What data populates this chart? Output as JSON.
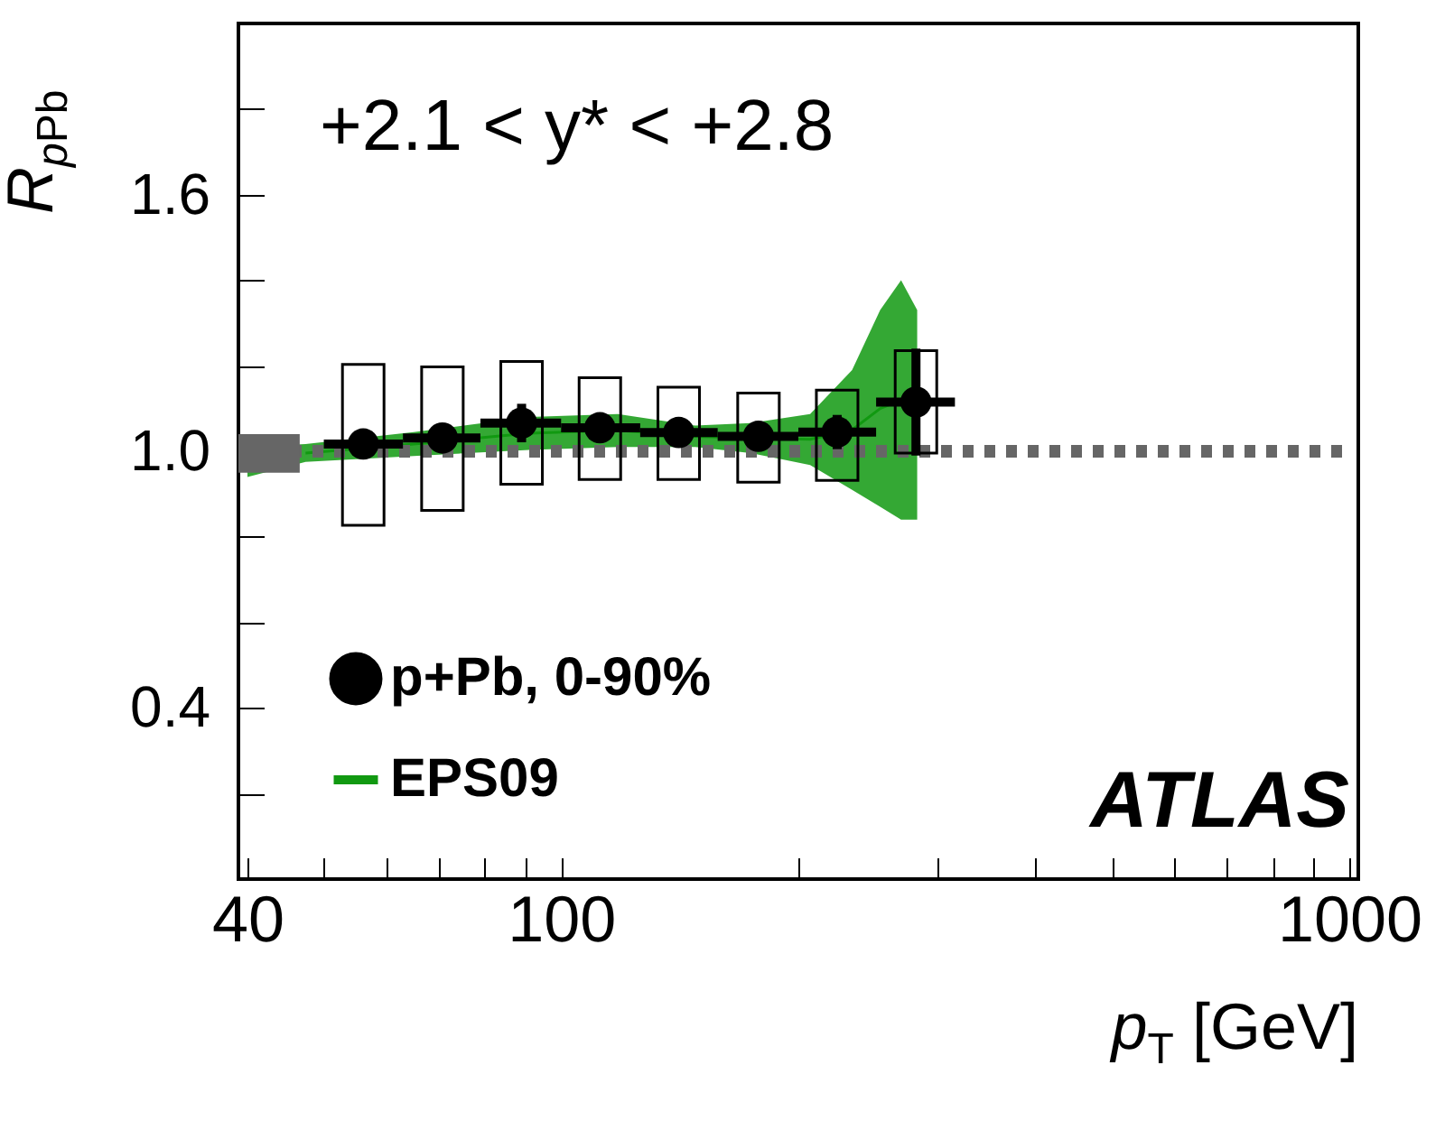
{
  "chart_data": {
    "type": "scatter",
    "xlabel": "p$_{T}$ [GeV]",
    "ylabel": "R$_{pPb}$",
    "annotations": [
      "+2.1 < y* < +2.8",
      "ATLAS"
    ],
    "log": "x",
    "xlim": [
      40,
      1000
    ],
    "ylim": [
      0,
      2
    ],
    "xticks": [
      40,
      {
        "value": 50,
        "label": null
      },
      {
        "value": 60,
        "label": null
      },
      {
        "value": 70,
        "label": null
      },
      {
        "value": 80,
        "label": null
      },
      {
        "value": 90,
        "label": null
      },
      100,
      {
        "value": 200,
        "label": null
      },
      {
        "value": 300,
        "label": null
      },
      {
        "value": 400,
        "label": null
      },
      {
        "value": 500,
        "label": null
      },
      {
        "value": 600,
        "label": null
      },
      {
        "value": 700,
        "label": null
      },
      {
        "value": 800,
        "label": null
      },
      {
        "value": 900,
        "label": null
      },
      1000
    ],
    "yticks": [
      {
        "value": 0.2,
        "label": null
      },
      0.4,
      {
        "value": 0.6,
        "label": null
      },
      {
        "value": 0.8,
        "label": null
      },
      {
        "value": 1,
        "label": "1.0"
      },
      {
        "value": 1.2,
        "label": null
      },
      {
        "value": 1.4,
        "label": null
      },
      1.6,
      {
        "value": 1.8,
        "label": null
      }
    ],
    "legend": "bottom left",
    "grid": false,
    "ref_lines": [
      {
        "axis": "y",
        "value": 1,
        "color": "#666666",
        "line_style": "dotted"
      }
    ],
    "series": [
      {
        "name": "p+Pb, 0-90%",
        "marker": "circle",
        "color": "#000000",
        "x": [
          56.1,
          70.7,
          89.1,
          112,
          141,
          178,
          224,
          282
        ],
        "values": [
          1.017,
          1.031,
          1.066,
          1.055,
          1.044,
          1.035,
          1.045,
          1.115
        ],
        "errors": [
          null,
          null,
          0.045,
          null,
          null,
          null,
          0.04,
          0.125
        ],
        "xerrors": [
          [
            50,
            63
          ],
          [
            63,
            79
          ],
          [
            79,
            100
          ],
          [
            100,
            126
          ],
          [
            126,
            158
          ],
          [
            158,
            200
          ],
          [
            200,
            251
          ],
          [
            251,
            316
          ]
        ]
      },
      {
        "name": "EPS09",
        "type": "line",
        "color": "#119911",
        "x": [
          40,
          47.4,
          65,
          91.1,
          118,
          148,
          174,
          207,
          234,
          254,
          270,
          283
        ],
        "values": [
          null,
          0.996,
          1.017,
          1.042,
          1.049,
          1.035,
          1.031,
          1.028,
          1.05,
          1.1,
          1.12,
          1.085
        ],
        "lower": [
          0.94,
          0.975,
          0.989,
          1.003,
          1.01,
          1.01,
          0.996,
          0.968,
          0.91,
          0.87,
          0.84,
          0.84
        ],
        "upper": [
          1.01,
          1.017,
          1.045,
          1.08,
          1.087,
          1.06,
          1.066,
          1.087,
          1.19,
          1.33,
          1.4,
          1.33
        ]
      },
      {
        "type": "bar",
        "marker": "none",
        "color": "#000000",
        "x": [
          56.1,
          70.7,
          89.1,
          112,
          141,
          178,
          224,
          282
        ],
        "base": [
          0.827,
          0.862,
          0.923,
          0.934,
          0.934,
          0.928,
          0.932,
          0.996
        ],
        "values": [
          0.376,
          0.335,
          0.287,
          0.238,
          0.216,
          0.208,
          0.211,
          0.239
        ]
      },
      {
        "type": "bar",
        "marker": "square",
        "color": "#666666",
        "x": [
          42.6
        ],
        "base": [
          0.95
        ],
        "values": [
          0.09
        ]
      }
    ]
  }
}
